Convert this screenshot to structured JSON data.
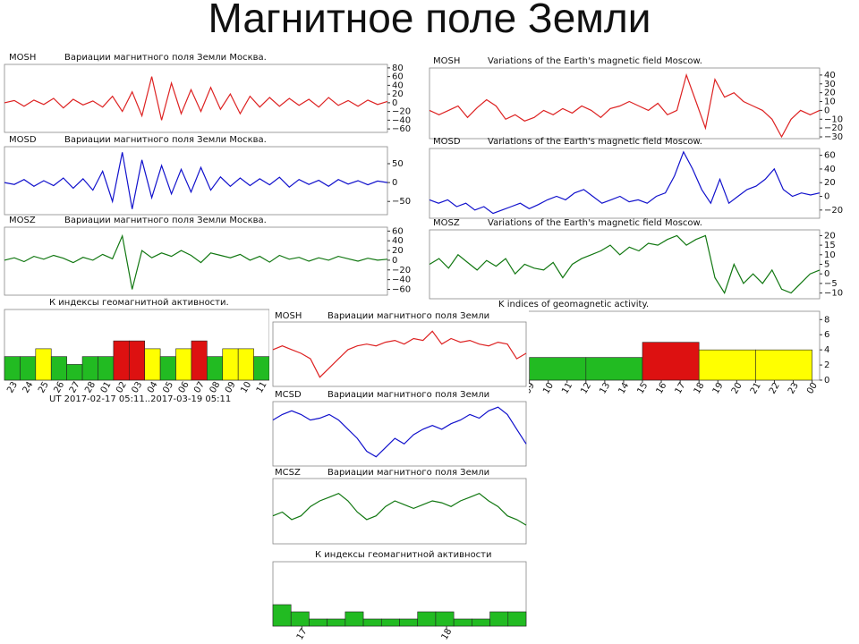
{
  "title": "Магнитное поле Земли",
  "chart_data": [
    {
      "type": "line",
      "label": "MOSH",
      "title": "Вариации магнитного поля Земли Москва.",
      "color": "#dd2222",
      "ylim": [
        -68,
        88
      ],
      "yticks": [
        80,
        60,
        40,
        20,
        0,
        {
          "value": -20,
          "label": "−20"
        },
        {
          "value": -40,
          "label": "−40"
        },
        {
          "value": -60,
          "label": "−60"
        }
      ],
      "values": [
        0,
        5,
        -8,
        6,
        -4,
        10,
        -12,
        8,
        -5,
        4,
        -10,
        15,
        -20,
        25,
        -30,
        60,
        -40,
        45,
        -25,
        30,
        -20,
        35,
        -15,
        20,
        -25,
        15,
        -10,
        12,
        -8,
        10,
        -6,
        8,
        -10,
        12,
        -6,
        5,
        -8,
        6,
        -4,
        3
      ]
    },
    {
      "type": "line",
      "label": "MOSD",
      "title": "Вариации магнитного поля Земли Москва.",
      "color": "#1111cc",
      "ylim": [
        -85,
        95
      ],
      "yticks": [
        50,
        0,
        {
          "value": -50,
          "label": "−50"
        }
      ],
      "values": [
        0,
        -5,
        8,
        -10,
        5,
        -8,
        12,
        -15,
        10,
        -20,
        30,
        -50,
        80,
        -70,
        60,
        -40,
        45,
        -30,
        35,
        -25,
        40,
        -20,
        15,
        -10,
        12,
        -8,
        10,
        -6,
        14,
        -12,
        8,
        -5,
        6,
        -10,
        8,
        -4,
        5,
        -6,
        4,
        0
      ]
    },
    {
      "type": "line",
      "label": "MOSZ",
      "title": "Вариации магнитного поля Земли Москва.",
      "color": "#117711",
      "ylim": [
        -72,
        68
      ],
      "yticks": [
        60,
        40,
        20,
        0,
        {
          "value": -20,
          "label": "−20"
        },
        {
          "value": -40,
          "label": "−40"
        },
        {
          "value": -60,
          "label": "−60"
        }
      ],
      "values": [
        0,
        5,
        -3,
        8,
        2,
        10,
        4,
        -5,
        6,
        0,
        12,
        3,
        50,
        -60,
        20,
        5,
        15,
        8,
        20,
        10,
        -5,
        15,
        10,
        5,
        12,
        0,
        8,
        -4,
        10,
        2,
        6,
        -2,
        5,
        0,
        8,
        3,
        -2,
        4,
        0,
        2
      ]
    },
    {
      "type": "bar",
      "title": "К индексы геомагнитной активности.",
      "subtitle": "UT 2017-02-17 05:11..2017-03-19 05:11",
      "ylim": [
        0,
        9
      ],
      "categories": [
        "23",
        "24",
        "25",
        "26",
        "27",
        "28",
        "01",
        "02",
        "03",
        "04",
        "05",
        "06",
        "07",
        "08",
        "09",
        "10",
        "11"
      ],
      "values": [
        3,
        3,
        4,
        3,
        2,
        3,
        3,
        5,
        5,
        4,
        3,
        4,
        5,
        3,
        4,
        4,
        3
      ],
      "colors": [
        "#22bb22",
        "#22bb22",
        "#ffff00",
        "#22bb22",
        "#22bb22",
        "#22bb22",
        "#22bb22",
        "#dd1111",
        "#dd1111",
        "#ffff00",
        "#22bb22",
        "#ffff00",
        "#dd1111",
        "#22bb22",
        "#ffff00",
        "#ffff00",
        "#22bb22"
      ]
    },
    {
      "type": "line",
      "label": "MOSH",
      "title": "Variations of the Earth's magnetic field Moscow.",
      "color": "#dd2222",
      "ylim": [
        -32,
        48
      ],
      "yticks": [
        40,
        30,
        20,
        10,
        0,
        {
          "value": -10,
          "label": "−10"
        },
        {
          "value": -20,
          "label": "−20"
        },
        {
          "value": -30,
          "label": "−30"
        }
      ],
      "values": [
        0,
        -5,
        0,
        5,
        -8,
        3,
        12,
        5,
        -10,
        -5,
        -12,
        -8,
        0,
        -5,
        2,
        -3,
        5,
        0,
        -8,
        2,
        5,
        10,
        5,
        0,
        8,
        -5,
        0,
        40,
        10,
        -20,
        35,
        15,
        20,
        10,
        5,
        0,
        -10,
        -30,
        -10,
        0,
        -5,
        0
      ]
    },
    {
      "type": "line",
      "label": "MOSD",
      "title": "Variations of the Earth's magnetic field Moscow.",
      "color": "#1111cc",
      "ylim": [
        -32,
        70
      ],
      "yticks": [
        60,
        40,
        20,
        0,
        {
          "value": -20,
          "label": "−20"
        }
      ],
      "values": [
        -5,
        -10,
        -5,
        -15,
        -10,
        -20,
        -15,
        -25,
        -20,
        -15,
        -10,
        -18,
        -12,
        -5,
        0,
        -5,
        5,
        10,
        0,
        -10,
        -5,
        0,
        -8,
        -5,
        -10,
        0,
        5,
        30,
        65,
        40,
        10,
        -10,
        25,
        -10,
        0,
        10,
        15,
        25,
        40,
        10,
        0,
        5,
        2,
        5
      ]
    },
    {
      "type": "line",
      "label": "MOSZ",
      "title": "Variations of the Earth's magnetic field Moscow.",
      "color": "#117711",
      "ylim": [
        -13,
        23
      ],
      "yticks": [
        20,
        15,
        10,
        5,
        0,
        {
          "value": -5,
          "label": "−5"
        },
        {
          "value": -10,
          "label": "−10"
        }
      ],
      "values": [
        5,
        8,
        3,
        10,
        6,
        2,
        7,
        4,
        8,
        0,
        5,
        3,
        2,
        6,
        -2,
        5,
        8,
        10,
        12,
        15,
        10,
        14,
        12,
        16,
        15,
        18,
        20,
        15,
        18,
        20,
        -2,
        -10,
        5,
        -5,
        0,
        -5,
        2,
        -8,
        -10,
        -5,
        0,
        2
      ]
    },
    {
      "type": "histogram",
      "title": "K indices of geomagnetic activity.",
      "xlim": [
        3.7,
        24.4
      ],
      "ylim": [
        0,
        9.1
      ],
      "yticks": [
        0,
        2,
        4,
        6,
        8
      ],
      "xticks": [
        {
          "value": 9,
          "label": "09"
        },
        10,
        11,
        12,
        13,
        14,
        15,
        16,
        17,
        18,
        19,
        20,
        21,
        22,
        23,
        {
          "value": 24,
          "label": "00"
        }
      ],
      "bins": [
        9,
        12,
        15,
        18,
        21,
        24
      ],
      "values": [
        3,
        3,
        5,
        4,
        4
      ],
      "colors": [
        "#22bb22",
        "#22bb22",
        "#dd1111",
        "#ffff00",
        "#ffff00"
      ]
    },
    {
      "type": "line",
      "label": "MOSH",
      "title": "Вариации магнитного поля Земли",
      "color": "#dd2222",
      "ylim": [
        -20,
        15
      ],
      "values": [
        0,
        2,
        0,
        -2,
        -5,
        -15,
        -10,
        -5,
        0,
        2,
        3,
        2,
        4,
        5,
        3,
        6,
        5,
        10,
        3,
        6,
        4,
        5,
        3,
        2,
        4,
        3,
        -5,
        -2
      ]
    },
    {
      "type": "line",
      "label": "MCSD",
      "title": "Вариации магнитного поля Земли",
      "color": "#1111cc",
      "ylim": [
        -20,
        15
      ],
      "values": [
        5,
        8,
        10,
        8,
        5,
        6,
        8,
        5,
        0,
        -5,
        -12,
        -15,
        -10,
        -5,
        -8,
        -3,
        0,
        2,
        0,
        3,
        5,
        8,
        6,
        10,
        12,
        8,
        0,
        -8
      ]
    },
    {
      "type": "line",
      "label": "MCSZ",
      "title": "Вариации магнитного поля Земли",
      "color": "#117711",
      "ylim": [
        -15,
        20
      ],
      "values": [
        0,
        2,
        -2,
        0,
        5,
        8,
        10,
        12,
        8,
        2,
        -2,
        0,
        5,
        8,
        6,
        4,
        6,
        8,
        7,
        5,
        8,
        10,
        12,
        8,
        5,
        0,
        -2,
        -5
      ]
    },
    {
      "type": "histogram",
      "title": "К индексы геомагнитной активности",
      "xlim": [
        0,
        14
      ],
      "ylim": [
        0,
        9
      ],
      "xticks": [
        {
          "value": 1.6,
          "label": "17"
        },
        {
          "value": 9.6,
          "label": "18"
        }
      ],
      "bins": [
        0,
        1,
        2,
        3,
        4,
        5,
        6,
        7,
        8,
        9,
        10,
        11,
        12,
        13,
        14
      ],
      "values": [
        3,
        2,
        1,
        1,
        2,
        1,
        1,
        1,
        2,
        2,
        1,
        1,
        2,
        2
      ],
      "colors": [
        "#22bb22",
        "#22bb22",
        "#22bb22",
        "#22bb22",
        "#22bb22",
        "#22bb22",
        "#22bb22",
        "#22bb22",
        "#22bb22",
        "#22bb22",
        "#22bb22",
        "#22bb22",
        "#22bb22",
        "#22bb22"
      ]
    }
  ]
}
